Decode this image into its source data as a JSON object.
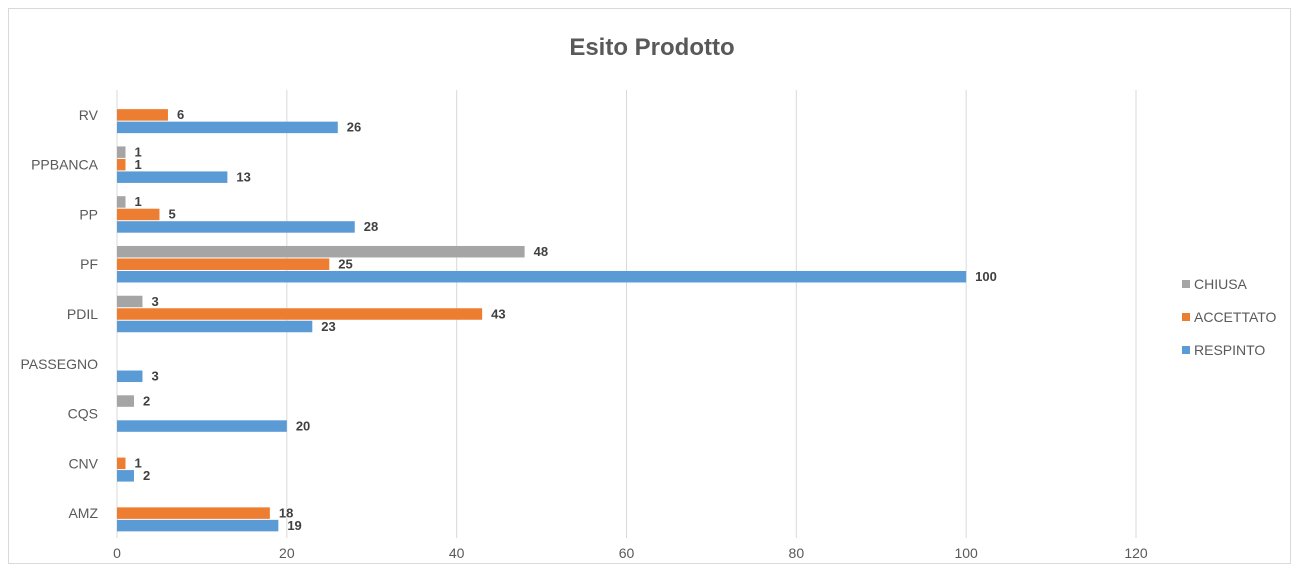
{
  "chart_data": {
    "type": "bar",
    "orientation": "horizontal",
    "title": "Esito Prodotto",
    "categories": [
      "AMZ",
      "CNV",
      "CQS",
      "PASSEGNO",
      "PDIL",
      "PF",
      "PP",
      "PPBANCA",
      "RV"
    ],
    "series": [
      {
        "name": "RESPINTO",
        "color": "#5b9bd5",
        "values": [
          19,
          2,
          20,
          3,
          23,
          100,
          28,
          13,
          26
        ]
      },
      {
        "name": "ACCETTATO",
        "color": "#ed7d31",
        "values": [
          18,
          1,
          null,
          null,
          43,
          25,
          5,
          1,
          6
        ]
      },
      {
        "name": "CHIUSA",
        "color": "#a5a5a5",
        "values": [
          null,
          null,
          2,
          null,
          3,
          48,
          1,
          1,
          null
        ]
      }
    ],
    "xlim": [
      0,
      120
    ],
    "xticks": [
      0,
      20,
      40,
      60,
      80,
      100,
      120
    ],
    "grid": true,
    "legend_position": "right",
    "data_labels": true
  }
}
